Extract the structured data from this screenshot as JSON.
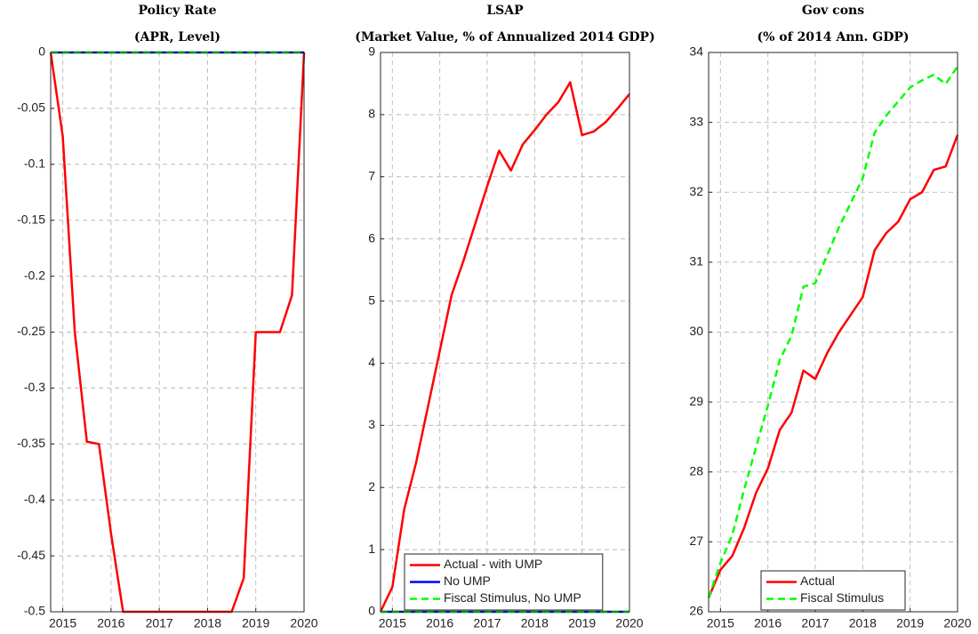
{
  "chart_data": [
    {
      "type": "line",
      "title": "Policy Rate",
      "subtitle": "(APR, Level)",
      "x": [
        2014.75,
        2015,
        2015.25,
        2015.5,
        2015.75,
        2016,
        2016.25,
        2016.5,
        2016.75,
        2017,
        2017.25,
        2017.5,
        2017.75,
        2018,
        2018.25,
        2018.5,
        2018.75,
        2019,
        2019.25,
        2019.5,
        2019.75,
        2020
      ],
      "xlim": [
        2014.75,
        2020
      ],
      "xticks": [
        2015,
        2016,
        2017,
        2018,
        2019,
        2020
      ],
      "ylim": [
        -0.5,
        0
      ],
      "yticks": [
        -0.5,
        -0.45,
        -0.4,
        -0.35,
        -0.3,
        -0.25,
        -0.2,
        -0.15,
        -0.1,
        -0.05,
        0
      ],
      "grid": true,
      "series": [
        {
          "color": "#ff0000",
          "dash": false,
          "values": [
            0,
            -0.075,
            -0.25,
            -0.348,
            -0.35,
            -0.43,
            -0.5,
            -0.5,
            -0.5,
            -0.5,
            -0.5,
            -0.5,
            -0.5,
            -0.5,
            -0.5,
            -0.5,
            -0.47,
            -0.25,
            -0.25,
            -0.25,
            -0.217,
            0
          ]
        },
        {
          "color": "#0000ff",
          "dash": false,
          "values": [
            0,
            0,
            0,
            0,
            0,
            0,
            0,
            0,
            0,
            0,
            0,
            0,
            0,
            0,
            0,
            0,
            0,
            0,
            0,
            0,
            0,
            0
          ]
        },
        {
          "color": "#00ff00",
          "dash": true,
          "values": [
            0,
            0,
            0,
            0,
            0,
            0,
            0,
            0,
            0,
            0,
            0,
            0,
            0,
            0,
            0,
            0,
            0,
            0,
            0,
            0,
            0,
            0
          ]
        }
      ]
    },
    {
      "type": "line",
      "title": "LSAP",
      "subtitle": "(Market Value, % of Annualized 2014 GDP)",
      "x": [
        2014.75,
        2015,
        2015.25,
        2015.5,
        2015.75,
        2016,
        2016.25,
        2016.5,
        2016.75,
        2017,
        2017.25,
        2017.5,
        2017.75,
        2018,
        2018.25,
        2018.5,
        2018.75,
        2019,
        2019.25,
        2019.5,
        2019.75,
        2020
      ],
      "xlim": [
        2014.75,
        2020
      ],
      "xticks": [
        2015,
        2016,
        2017,
        2018,
        2019,
        2020
      ],
      "ylim": [
        0,
        9
      ],
      "yticks": [
        0,
        1,
        2,
        3,
        4,
        5,
        6,
        7,
        8,
        9
      ],
      "grid": true,
      "legend": "lower left",
      "series": [
        {
          "name": "Actual - with UMP",
          "color": "#ff0000",
          "dash": false,
          "values": [
            0,
            0.4,
            1.65,
            2.4,
            3.3,
            4.2,
            5.1,
            5.65,
            6.25,
            6.85,
            7.42,
            7.1,
            7.52,
            7.75,
            8.0,
            8.2,
            8.52,
            7.67,
            7.73,
            7.88,
            8.1,
            8.33
          ]
        },
        {
          "name": "No UMP",
          "color": "#0000ff",
          "dash": false,
          "values": [
            0,
            0,
            0,
            0,
            0,
            0,
            0,
            0,
            0,
            0,
            0,
            0,
            0,
            0,
            0,
            0,
            0,
            0,
            0,
            0,
            0,
            0
          ]
        },
        {
          "name": "Fiscal Stimulus, No UMP",
          "color": "#00ff00",
          "dash": true,
          "values": [
            0,
            0,
            0,
            0,
            0,
            0,
            0,
            0,
            0,
            0,
            0,
            0,
            0,
            0,
            0,
            0,
            0,
            0,
            0,
            0,
            0,
            0
          ]
        }
      ]
    },
    {
      "type": "line",
      "title": "Gov cons",
      "subtitle": "(% of 2014 Ann. GDP)",
      "x": [
        2014.75,
        2015,
        2015.25,
        2015.5,
        2015.75,
        2016,
        2016.25,
        2016.5,
        2016.75,
        2017,
        2017.25,
        2017.5,
        2017.75,
        2018,
        2018.25,
        2018.5,
        2018.75,
        2019,
        2019.25,
        2019.5,
        2019.75,
        2020
      ],
      "xlim": [
        2014.75,
        2020
      ],
      "xticks": [
        2015,
        2016,
        2017,
        2018,
        2019,
        2020
      ],
      "ylim": [
        26,
        34
      ],
      "yticks": [
        26,
        27,
        28,
        29,
        30,
        31,
        32,
        33,
        34
      ],
      "grid": true,
      "legend": "lower center",
      "series": [
        {
          "name": "Actual",
          "color": "#ff0000",
          "dash": false,
          "values": [
            26.2,
            26.6,
            26.8,
            27.2,
            27.7,
            28.05,
            28.6,
            28.85,
            29.45,
            29.33,
            29.7,
            30.0,
            30.25,
            30.5,
            31.17,
            31.42,
            31.58,
            31.9,
            32.0,
            32.32,
            32.37,
            32.82
          ]
        },
        {
          "name": "Fiscal Stimulus",
          "color": "#00ff00",
          "dash": true,
          "values": [
            26.2,
            26.7,
            27.1,
            27.75,
            28.35,
            28.95,
            29.6,
            29.95,
            30.65,
            30.7,
            31.1,
            31.5,
            31.85,
            32.2,
            32.85,
            33.1,
            33.3,
            33.5,
            33.6,
            33.68,
            33.55,
            33.8
          ]
        }
      ]
    }
  ]
}
